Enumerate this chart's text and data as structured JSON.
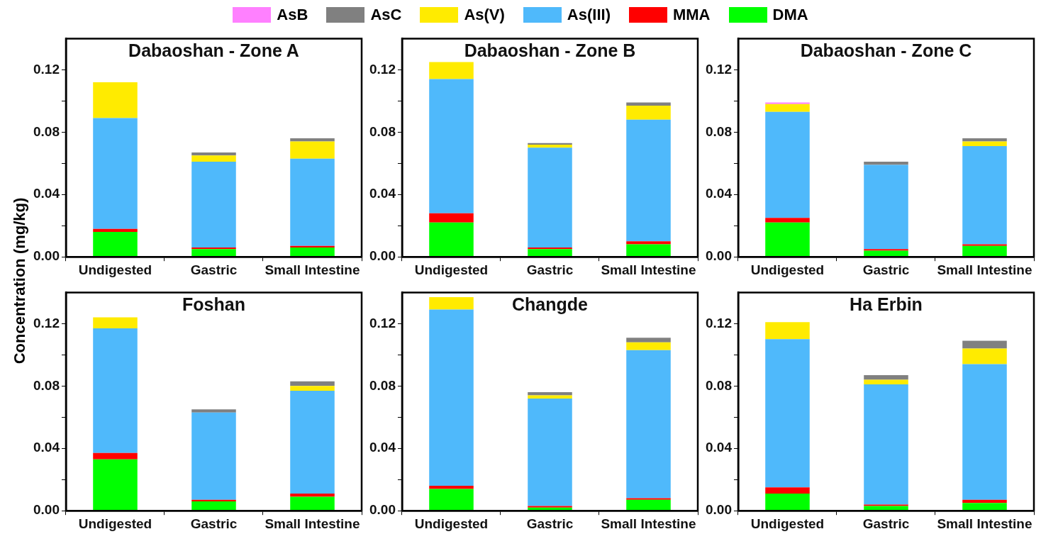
{
  "chart_data": [
    {
      "type": "bar",
      "title": "Dabaoshan - Zone A",
      "ylabel": "Concentration (mg/kg)",
      "legend": "top",
      "stacked": true,
      "categories": [
        "Undigested",
        "Gastric",
        "Small Intestine"
      ],
      "ylim": [
        0,
        0.14
      ],
      "yticks": [
        {
          "value": 0,
          "label": "0.00"
        },
        {
          "value": 0.02,
          "label": null
        },
        0.04,
        {
          "value": 0.06,
          "label": null
        },
        0.08,
        {
          "value": 0.1,
          "label": null
        },
        0.12
      ],
      "grid": false,
      "series": [
        {
          "name": "DMA",
          "color": "#00ff00",
          "values": [
            0.016,
            0.005,
            0.006
          ]
        },
        {
          "name": "MMA",
          "color": "#ff0000",
          "values": [
            0.002,
            0.001,
            0.001
          ]
        },
        {
          "name": "As(III)",
          "color": "#4fb9fb",
          "values": [
            0.071,
            0.055,
            0.056
          ]
        },
        {
          "name": "As(V)",
          "color": "#ffeb00",
          "values": [
            0.023,
            0.004,
            0.011
          ]
        },
        {
          "name": "AsC",
          "color": "#808080",
          "values": [
            0,
            0.002,
            0.002
          ]
        },
        {
          "name": "AsB",
          "color": "#ff80ff",
          "values": [
            0,
            0,
            0
          ]
        }
      ]
    },
    {
      "type": "bar",
      "title": "Dabaoshan - Zone B",
      "stacked": true,
      "categories": [
        "Undigested",
        "Gastric",
        "Small Intestine"
      ],
      "ylim": [
        0,
        0.14
      ],
      "yticks": [
        {
          "value": 0,
          "label": "0.00"
        },
        {
          "value": 0.02,
          "label": null
        },
        0.04,
        {
          "value": 0.06,
          "label": null
        },
        0.08,
        {
          "value": 0.1,
          "label": null
        },
        0.12
      ],
      "grid": false,
      "series": [
        {
          "color": "#00ff00",
          "values": [
            0.022,
            0.005,
            0.008
          ]
        },
        {
          "color": "#ff0000",
          "values": [
            0.006,
            0.001,
            0.002
          ]
        },
        {
          "color": "#4fb9fb",
          "values": [
            0.086,
            0.064,
            0.078
          ]
        },
        {
          "color": "#ffeb00",
          "values": [
            0.011,
            0.002,
            0.009
          ]
        },
        {
          "color": "#808080",
          "values": [
            0,
            0.001,
            0.002
          ]
        },
        {
          "color": "#ff80ff",
          "values": [
            0,
            0,
            0
          ]
        }
      ]
    },
    {
      "type": "bar",
      "title": "Dabaoshan - Zone C",
      "stacked": true,
      "categories": [
        "Undigested",
        "Gastric",
        "Small Intestine"
      ],
      "ylim": [
        0,
        0.14
      ],
      "yticks": [
        {
          "value": 0,
          "label": "0.00"
        },
        {
          "value": 0.02,
          "label": null
        },
        0.04,
        {
          "value": 0.06,
          "label": null
        },
        0.08,
        {
          "value": 0.1,
          "label": null
        },
        0.12
      ],
      "grid": false,
      "series": [
        {
          "color": "#00ff00",
          "values": [
            0.022,
            0.004,
            0.007
          ]
        },
        {
          "color": "#ff0000",
          "values": [
            0.003,
            0.001,
            0.001
          ]
        },
        {
          "color": "#4fb9fb",
          "values": [
            0.068,
            0.054,
            0.063
          ]
        },
        {
          "color": "#ffeb00",
          "values": [
            0.005,
            0,
            0.003
          ]
        },
        {
          "color": "#808080",
          "values": [
            0,
            0.002,
            0.002
          ]
        },
        {
          "color": "#ff80ff",
          "values": [
            0.001,
            0,
            0
          ]
        }
      ]
    },
    {
      "type": "bar",
      "title": "Foshan",
      "stacked": true,
      "categories": [
        "Undigested",
        "Gastric",
        "Small Intestine"
      ],
      "ylim": [
        0,
        0.14
      ],
      "yticks": [
        {
          "value": 0,
          "label": "0.00"
        },
        {
          "value": 0.02,
          "label": null
        },
        0.04,
        {
          "value": 0.06,
          "label": null
        },
        0.08,
        {
          "value": 0.1,
          "label": null
        },
        0.12
      ],
      "grid": false,
      "series": [
        {
          "color": "#00ff00",
          "values": [
            0.033,
            0.006,
            0.009
          ]
        },
        {
          "color": "#ff0000",
          "values": [
            0.004,
            0.001,
            0.002
          ]
        },
        {
          "color": "#4fb9fb",
          "values": [
            0.08,
            0.056,
            0.066
          ]
        },
        {
          "color": "#ffeb00",
          "values": [
            0.007,
            0,
            0.003
          ]
        },
        {
          "color": "#808080",
          "values": [
            0,
            0.002,
            0.003
          ]
        },
        {
          "color": "#ff80ff",
          "values": [
            0,
            0,
            0
          ]
        }
      ]
    },
    {
      "type": "bar",
      "title": "Changde",
      "stacked": true,
      "categories": [
        "Undigested",
        "Gastric",
        "Small Intestine"
      ],
      "ylim": [
        0,
        0.14
      ],
      "yticks": [
        {
          "value": 0,
          "label": "0.00"
        },
        {
          "value": 0.02,
          "label": null
        },
        0.04,
        {
          "value": 0.06,
          "label": null
        },
        0.08,
        {
          "value": 0.1,
          "label": null
        },
        0.12
      ],
      "grid": false,
      "series": [
        {
          "color": "#00ff00",
          "values": [
            0.014,
            0.002,
            0.007
          ]
        },
        {
          "color": "#ff0000",
          "values": [
            0.002,
            0.001,
            0.001
          ]
        },
        {
          "color": "#4fb9fb",
          "values": [
            0.113,
            0.069,
            0.095
          ]
        },
        {
          "color": "#ffeb00",
          "values": [
            0.008,
            0.002,
            0.005
          ]
        },
        {
          "color": "#808080",
          "values": [
            0,
            0.002,
            0.003
          ]
        },
        {
          "color": "#ff80ff",
          "values": [
            0,
            0,
            0
          ]
        }
      ]
    },
    {
      "type": "bar",
      "title": "Ha Erbin",
      "stacked": true,
      "categories": [
        "Undigested",
        "Gastric",
        "Small Intestine"
      ],
      "ylim": [
        0,
        0.14
      ],
      "yticks": [
        {
          "value": 0,
          "label": "0.00"
        },
        {
          "value": 0.02,
          "label": null
        },
        0.04,
        {
          "value": 0.06,
          "label": null
        },
        0.08,
        {
          "value": 0.1,
          "label": null
        },
        0.12
      ],
      "grid": false,
      "series": [
        {
          "color": "#00ff00",
          "values": [
            0.011,
            0.003,
            0.005
          ]
        },
        {
          "color": "#ff0000",
          "values": [
            0.004,
            0.001,
            0.002
          ]
        },
        {
          "color": "#4fb9fb",
          "values": [
            0.095,
            0.077,
            0.087
          ]
        },
        {
          "color": "#ffeb00",
          "values": [
            0.011,
            0.003,
            0.01
          ]
        },
        {
          "color": "#808080",
          "values": [
            0,
            0.003,
            0.005
          ]
        },
        {
          "color": "#ff80ff",
          "values": [
            0,
            0,
            0
          ]
        }
      ]
    }
  ]
}
